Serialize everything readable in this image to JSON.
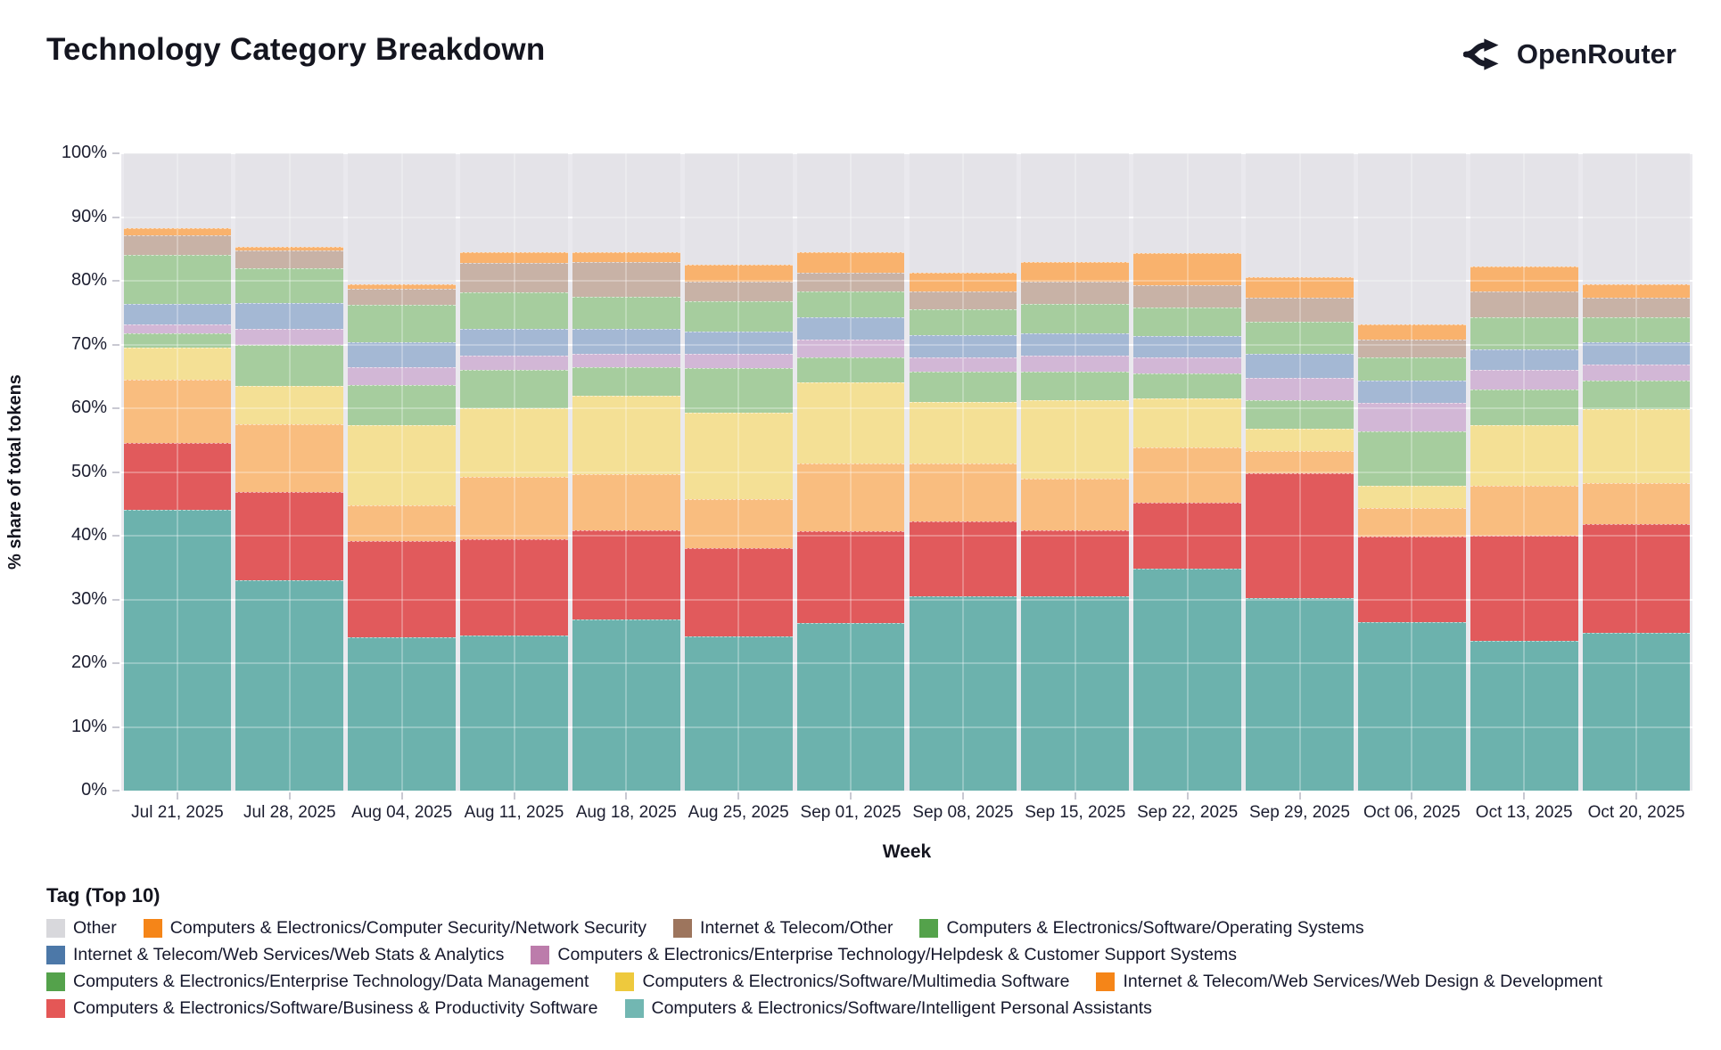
{
  "header": {
    "title": "Technology Category Breakdown",
    "brand": "OpenRouter"
  },
  "chart": {
    "legend_title": "Tag (Top 10)",
    "x_axis_title": "Week",
    "y_axis_title": "% share of total tokens",
    "y_ticks": [
      0,
      10,
      20,
      30,
      40,
      50,
      60,
      70,
      80,
      90,
      100
    ],
    "y_tick_suffix": "%",
    "plot_bg": "#eae9ee"
  },
  "chart_data": {
    "type": "bar",
    "stacked": true,
    "normalized": true,
    "ylim": [
      0,
      100
    ],
    "grid": true,
    "categories": [
      "Jul 21, 2025",
      "Jul 28, 2025",
      "Aug 04, 2025",
      "Aug 11, 2025",
      "Aug 18, 2025",
      "Aug 25, 2025",
      "Sep 01, 2025",
      "Sep 08, 2025",
      "Sep 15, 2025",
      "Sep 22, 2025",
      "Sep 29, 2025",
      "Oct 06, 2025",
      "Oct 13, 2025",
      "Oct 20, 2025"
    ],
    "stack_order": [
      "ipa",
      "bps",
      "wdd",
      "mms",
      "dm",
      "hcs",
      "wsa",
      "os",
      "ito",
      "ns",
      "other"
    ],
    "legend_rows": [
      [
        "other",
        "ns",
        "ito",
        "os"
      ],
      [
        "wsa",
        "hcs"
      ],
      [
        "dm",
        "mms",
        "wdd"
      ],
      [
        "bps",
        "ipa"
      ]
    ],
    "series": {
      "ipa": {
        "name": "Computers & Electronics/Software/Intelligent Personal Assistants",
        "legend_color": "#72b7b2",
        "bar_color": "#6cb2ad",
        "values": [
          44.0,
          33.0,
          24.0,
          24.3,
          26.8,
          24.2,
          26.3,
          30.5,
          30.5,
          34.8,
          30.2,
          26.5,
          23.5,
          24.8
        ]
      },
      "bps": {
        "name": "Computers & Electronics/Software/Business & Productivity Software",
        "legend_color": "#e45756",
        "bar_color": "#e15a5c",
        "values": [
          10.5,
          13.8,
          15.2,
          15.2,
          14.0,
          13.8,
          14.4,
          11.8,
          10.3,
          10.4,
          19.6,
          13.3,
          16.5,
          17.0
        ]
      },
      "wdd": {
        "name": "Internet & Telecom/Web Services/Web Design & Development",
        "legend_color": "#f58518",
        "bar_color": "#f9bd7f",
        "values": [
          10.0,
          10.7,
          5.6,
          9.7,
          8.9,
          7.8,
          10.6,
          9.0,
          8.2,
          8.6,
          3.5,
          4.5,
          7.8,
          6.5
        ]
      },
      "mms": {
        "name": "Computers & Electronics/Software/Multimedia Software",
        "legend_color": "#eec93d",
        "bar_color": "#f4e095",
        "values": [
          5.0,
          6.0,
          12.5,
          10.8,
          12.3,
          13.5,
          12.7,
          9.7,
          12.3,
          7.7,
          3.5,
          3.5,
          9.5,
          11.5
        ]
      },
      "dm": {
        "name": "Computers & Electronics/Enterprise Technology/Data Management",
        "legend_color": "#54a24b",
        "bar_color": "#a6cd9e",
        "values": [
          2.2,
          6.5,
          6.4,
          6.0,
          4.5,
          7.0,
          4.0,
          4.8,
          4.5,
          4.0,
          4.5,
          8.5,
          5.7,
          4.5
        ]
      },
      "hcs": {
        "name": "Computers & Electronics/Enterprise Technology/Helpdesk & Customer Support Systems",
        "legend_color": "#bc7cab",
        "bar_color": "#d2b7d6",
        "values": [
          1.5,
          2.4,
          2.8,
          2.3,
          2.0,
          2.2,
          2.8,
          2.2,
          2.5,
          2.5,
          3.5,
          4.5,
          3.0,
          2.5
        ]
      },
      "wsa": {
        "name": "Internet & Telecom/Web Services/Web Stats & Analytics",
        "legend_color": "#4c78a8",
        "bar_color": "#a4b8d4",
        "values": [
          3.1,
          4.1,
          3.8,
          4.2,
          4.0,
          3.5,
          3.5,
          3.5,
          3.5,
          3.3,
          3.7,
          3.5,
          3.3,
          3.5
        ]
      },
      "os": {
        "name": "Computers & Electronics/Software/Operating Systems",
        "legend_color": "#54a24b",
        "bar_color": "#a6cd9e",
        "values": [
          7.7,
          5.5,
          5.9,
          5.7,
          5.0,
          4.8,
          4.0,
          4.0,
          4.5,
          4.5,
          5.0,
          3.7,
          5.0,
          4.0
        ]
      },
      "ito": {
        "name": "Internet & Telecom/Other",
        "legend_color": "#9d755d",
        "bar_color": "#c8b2a6",
        "values": [
          3.2,
          2.7,
          2.5,
          4.6,
          5.5,
          3.0,
          3.0,
          2.8,
          3.5,
          3.5,
          3.8,
          2.8,
          4.0,
          3.0
        ]
      },
      "ns": {
        "name": "Computers & Electronics/Computer Security/Network Security",
        "legend_color": "#f58518",
        "bar_color": "#f9b26d",
        "values": [
          1.0,
          0.6,
          0.8,
          1.7,
          1.5,
          2.7,
          3.2,
          3.0,
          3.2,
          5.0,
          3.2,
          2.4,
          4.0,
          2.2
        ]
      },
      "other": {
        "name": "Other",
        "legend_color": "#d8d8dc",
        "bar_color": "#e4e3e8",
        "values": [
          11.8,
          14.7,
          20.5,
          15.5,
          15.5,
          17.5,
          15.5,
          18.7,
          17.0,
          15.7,
          19.5,
          26.8,
          17.7,
          20.5
        ]
      }
    }
  }
}
